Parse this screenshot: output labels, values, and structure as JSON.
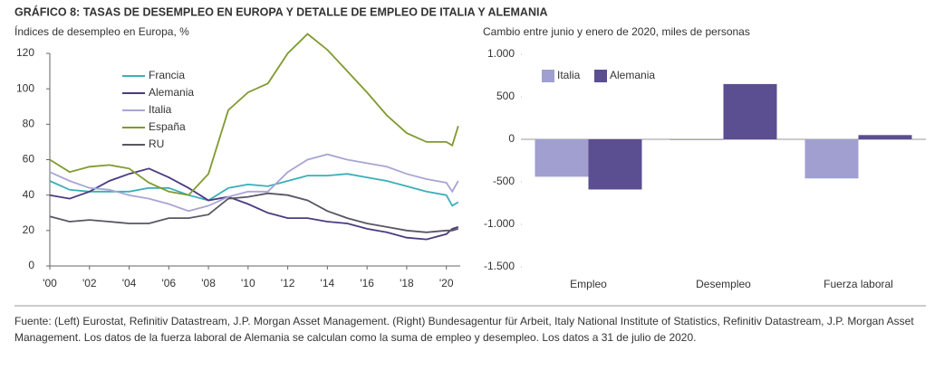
{
  "title": "GRÁFICO 8: TASAS DE DESEMPLEO EN EUROPA Y DETALLE DE EMPLEO DE ITALIA Y ALEMANIA",
  "footnote": "Fuente: (Left) Eurostat, Refinitiv Datastream, J.P. Morgan Asset Management. (Right) Bundesagentur für Arbeit, Italy National Institute of Statistics, Refinitiv Datastream, J.P. Morgan Asset Management. Los datos de la fuerza laboral de Alemania se calculan como la suma de empleo y desempleo. Los datos a 31 de julio de 2020.",
  "chart_data": [
    {
      "type": "line",
      "title": "Índices de desempleo en Europa, %",
      "x": [
        2000,
        2001,
        2002,
        2003,
        2004,
        2005,
        2006,
        2007,
        2008,
        2009,
        2010,
        2011,
        2012,
        2013,
        2014,
        2015,
        2016,
        2017,
        2018,
        2019,
        2020,
        2020.3,
        2020.6
      ],
      "series": [
        {
          "name": "Francia",
          "color": "#3aafb9",
          "values": [
            48,
            43,
            42,
            42,
            42,
            44,
            44,
            40,
            37,
            44,
            46,
            45,
            48,
            51,
            51,
            52,
            50,
            48,
            45,
            42,
            40,
            34,
            36
          ]
        },
        {
          "name": "Alemania",
          "color": "#4b3b80",
          "values": [
            40,
            38,
            42,
            48,
            52,
            55,
            50,
            44,
            37,
            39,
            35,
            30,
            27,
            27,
            25,
            24,
            21,
            19,
            16,
            15,
            18,
            21,
            22
          ]
        },
        {
          "name": "Italia",
          "color": "#a8a6d3",
          "values": [
            53,
            48,
            44,
            43,
            40,
            38,
            35,
            31,
            34,
            39,
            42,
            42,
            53,
            60,
            63,
            60,
            58,
            56,
            52,
            49,
            47,
            42,
            48
          ]
        },
        {
          "name": "España",
          "color": "#7f9a2f",
          "values": [
            60,
            53,
            56,
            57,
            55,
            47,
            42,
            40,
            52,
            88,
            98,
            103,
            120,
            131,
            122,
            110,
            98,
            85,
            75,
            70,
            70,
            68,
            79
          ]
        },
        {
          "name": "RU",
          "color": "#5a5563",
          "values": [
            28,
            25,
            26,
            25,
            24,
            24,
            27,
            27,
            29,
            38,
            39,
            41,
            40,
            37,
            31,
            27,
            24,
            22,
            20,
            19,
            20,
            20,
            21
          ]
        }
      ],
      "xlim": [
        2000,
        2020.7
      ],
      "xticks": [
        {
          "value": 2000,
          "label": "'00"
        },
        {
          "value": 2002,
          "label": "'02"
        },
        {
          "value": 2004,
          "label": "'04"
        },
        {
          "value": 2006,
          "label": "'06"
        },
        {
          "value": 2008,
          "label": "'08"
        },
        {
          "value": 2010,
          "label": "'10"
        },
        {
          "value": 2012,
          "label": "'12"
        },
        {
          "value": 2014,
          "label": "'14"
        },
        {
          "value": 2016,
          "label": "'16"
        },
        {
          "value": 2018,
          "label": "'18"
        },
        {
          "value": 2020,
          "label": "'20"
        }
      ],
      "ylim": [
        0,
        120
      ],
      "yticks": [
        0,
        20,
        40,
        60,
        80,
        100,
        120
      ]
    },
    {
      "type": "bar",
      "title": "Cambio entre junio y enero de 2020, miles de personas",
      "categories": [
        "Empleo",
        "Desempleo",
        "Fuerza laboral"
      ],
      "series": [
        {
          "name": "Italia",
          "color": "#a09fcf",
          "values": [
            -440,
            -10,
            -460
          ]
        },
        {
          "name": "Alemania",
          "color": "#5b4e91",
          "values": [
            -590,
            650,
            50
          ]
        }
      ],
      "ylim": [
        -1500,
        1000
      ],
      "yticks": [
        {
          "value": 1000,
          "label": "1.000"
        },
        500,
        0,
        -500,
        {
          "value": -1000,
          "label": "-1.000"
        },
        {
          "value": -1500,
          "label": "-1.500"
        }
      ]
    }
  ]
}
